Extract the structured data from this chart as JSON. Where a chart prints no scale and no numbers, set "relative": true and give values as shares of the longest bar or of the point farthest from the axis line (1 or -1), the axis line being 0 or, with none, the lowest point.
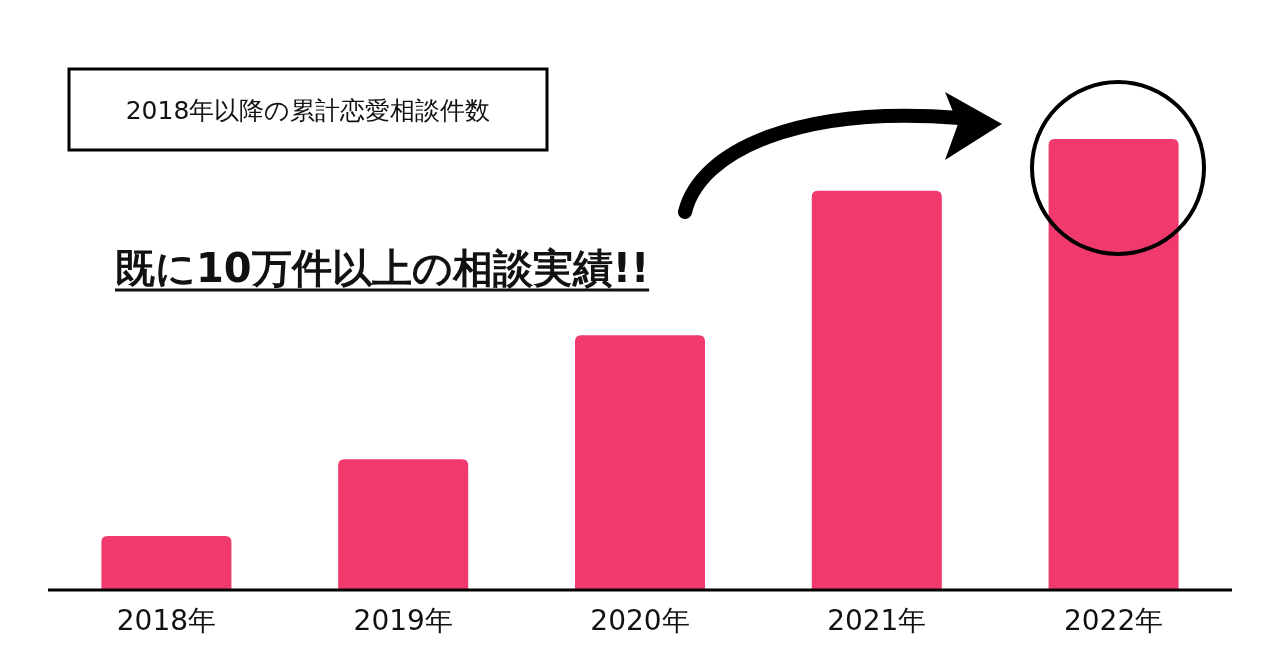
{
  "chart_data": {
    "type": "bar",
    "title": "2018年以降の累計恋愛相談件数",
    "categories": [
      "2018年",
      "2019年",
      "2020年",
      "2021年",
      "2022年"
    ],
    "values": [
      0.12,
      0.29,
      0.565,
      0.885,
      1
    ],
    "color": "#f03a6e",
    "relative": true,
    "annotations": [
      "既に10万件以上の相談実績!!"
    ]
  }
}
